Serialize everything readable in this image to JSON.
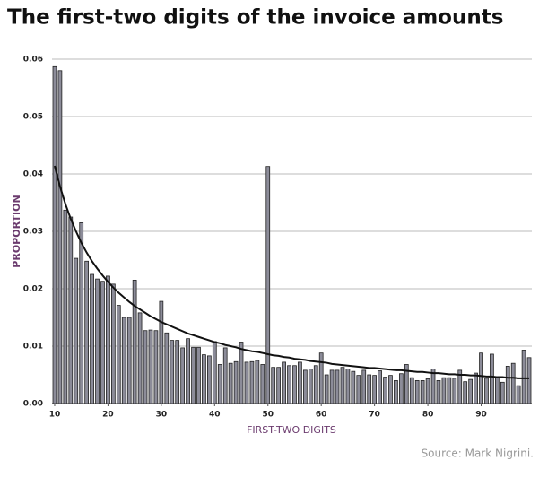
{
  "chart_data": {
    "type": "bar",
    "title": "The first-two digits of the invoice amounts",
    "x_label": "FIRST-TWO DIGITS",
    "y_label": "PROPORTION",
    "source": "Source: Mark Nigrini.",
    "x": [
      10,
      11,
      12,
      13,
      14,
      15,
      16,
      17,
      18,
      19,
      20,
      21,
      22,
      23,
      24,
      25,
      26,
      27,
      28,
      29,
      30,
      31,
      32,
      33,
      34,
      35,
      36,
      37,
      38,
      39,
      40,
      41,
      42,
      43,
      44,
      45,
      46,
      47,
      48,
      49,
      50,
      51,
      52,
      53,
      54,
      55,
      56,
      57,
      58,
      59,
      60,
      61,
      62,
      63,
      64,
      65,
      66,
      67,
      68,
      69,
      70,
      71,
      72,
      73,
      74,
      75,
      76,
      77,
      78,
      79,
      80,
      81,
      82,
      83,
      84,
      85,
      86,
      87,
      88,
      89,
      90,
      91,
      92,
      93,
      94,
      95,
      96,
      97,
      98,
      99
    ],
    "series": [
      {
        "type": "bar",
        "color": "#8c8c99",
        "values": [
          0.0587,
          0.058,
          0.0337,
          0.0325,
          0.0253,
          0.0315,
          0.0248,
          0.0225,
          0.0217,
          0.0213,
          0.0222,
          0.0208,
          0.0171,
          0.015,
          0.015,
          0.0215,
          0.0158,
          0.0127,
          0.0128,
          0.0127,
          0.0178,
          0.0123,
          0.011,
          0.011,
          0.0097,
          0.0113,
          0.0098,
          0.0098,
          0.0085,
          0.0083,
          0.0108,
          0.0068,
          0.0097,
          0.007,
          0.0073,
          0.0107,
          0.0072,
          0.0073,
          0.0075,
          0.0068,
          0.0413,
          0.0063,
          0.0063,
          0.0072,
          0.0066,
          0.0066,
          0.0072,
          0.0058,
          0.006,
          0.0066,
          0.0088,
          0.005,
          0.0058,
          0.0058,
          0.0063,
          0.006,
          0.0056,
          0.0049,
          0.0058,
          0.005,
          0.0049,
          0.0057,
          0.0046,
          0.0049,
          0.004,
          0.0052,
          0.0068,
          0.0045,
          0.004,
          0.004,
          0.0043,
          0.006,
          0.004,
          0.0045,
          0.0045,
          0.0044,
          0.0058,
          0.0038,
          0.0042,
          0.0053,
          0.0088,
          0.0044,
          0.0086,
          0.0045,
          0.0037,
          0.0065,
          0.007,
          0.0031,
          0.0093,
          0.008
        ]
      },
      {
        "type": "line",
        "color": "#111111",
        "values": [
          0.0414,
          0.0378,
          0.0348,
          0.0322,
          0.03,
          0.028,
          0.0263,
          0.0248,
          0.0235,
          0.0223,
          0.0212,
          0.0202,
          0.0193,
          0.0185,
          0.0177,
          0.017,
          0.0164,
          0.0158,
          0.0152,
          0.0147,
          0.0142,
          0.0138,
          0.0134,
          0.013,
          0.0126,
          0.0122,
          0.0119,
          0.0116,
          0.0113,
          0.011,
          0.0107,
          0.0105,
          0.0102,
          0.01,
          0.0098,
          0.0095,
          0.0093,
          0.0091,
          0.009,
          0.0088,
          0.0086,
          0.0084,
          0.0083,
          0.0081,
          0.008,
          0.0078,
          0.0077,
          0.0076,
          0.0074,
          0.0073,
          0.0072,
          0.0071,
          0.0069,
          0.0068,
          0.0067,
          0.0066,
          0.0065,
          0.0064,
          0.0063,
          0.0062,
          0.0062,
          0.0061,
          0.006,
          0.0059,
          0.0058,
          0.0058,
          0.0057,
          0.0056,
          0.0055,
          0.0055,
          0.0054,
          0.0053,
          0.0053,
          0.0052,
          0.0051,
          0.0051,
          0.005,
          0.005,
          0.0049,
          0.0049,
          0.0048,
          0.0047,
          0.0047,
          0.0046,
          0.0046,
          0.0045,
          0.0045,
          0.0044,
          0.0044,
          0.0044
        ]
      }
    ],
    "xlim": [
      9.5,
      99.5
    ],
    "xticks": [
      10,
      20,
      30,
      40,
      50,
      60,
      70,
      80,
      90
    ],
    "ylim": [
      0,
      0.06
    ],
    "yticks": [
      {
        "value": 0,
        "label": "0.00"
      },
      0.01,
      0.02,
      0.03,
      0.04,
      0.05,
      0.06
    ],
    "grid": true
  }
}
